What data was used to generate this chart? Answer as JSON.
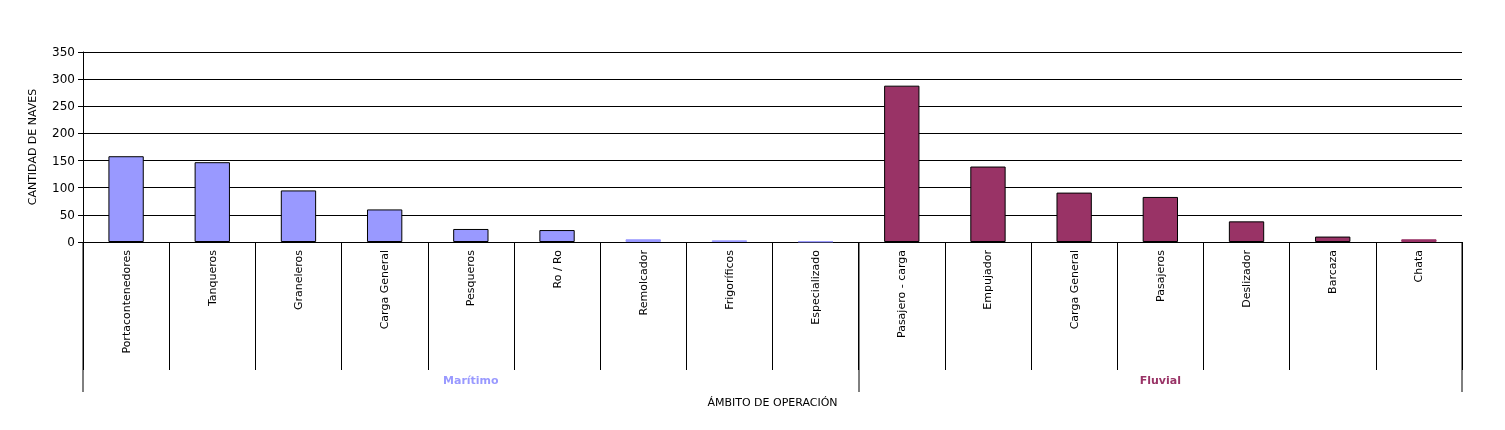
{
  "chart_data": {
    "type": "bar",
    "xlabel": "ÁMBITO DE OPERACIÓN",
    "ylabel": "CANTIDAD DE NAVES",
    "categories": [
      "Portacontenedores",
      "Tanqueros",
      "Graneleros",
      "Carga General",
      "Pesqueros",
      "Ro / Ro",
      "Remolcador",
      "Frigoríficos",
      "Especializado",
      "Pasajero - carga",
      "Empujador",
      "Carga General",
      "Pasajeros",
      "Deslizador",
      "Barcaza",
      "Chata"
    ],
    "series": [
      {
        "name": "Marítimo",
        "color": "#9999ff",
        "values": [
          158,
          147,
          95,
          60,
          24,
          22,
          5,
          3,
          1,
          null,
          null,
          null,
          null,
          null,
          null,
          null
        ]
      },
      {
        "name": "Fluvial",
        "color": "#993366",
        "values": [
          null,
          null,
          null,
          null,
          null,
          null,
          null,
          null,
          null,
          288,
          139,
          91,
          83,
          38,
          10,
          5
        ]
      }
    ],
    "ylim": [
      0,
      350
    ],
    "yticks": [
      0,
      50,
      100,
      150,
      200,
      250,
      300,
      350
    ],
    "grid": "y",
    "legend": false
  }
}
